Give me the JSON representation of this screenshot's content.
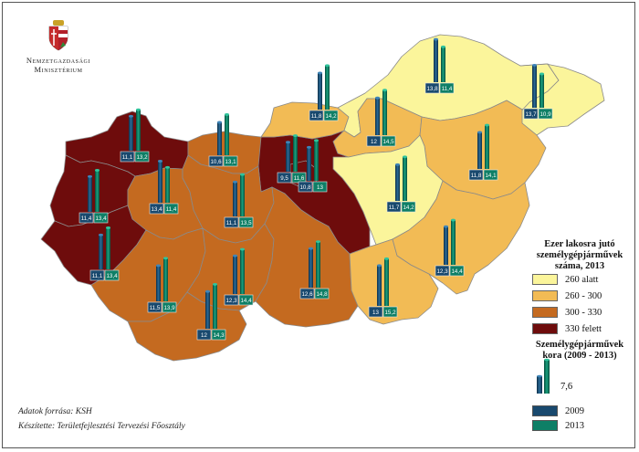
{
  "ministry": {
    "line1": "Nemzetgazdasági",
    "line2": "Minisztérium"
  },
  "legend": {
    "density_title_1": "Ezer lakosra jutó",
    "density_title_2": "személygépjárművek",
    "density_title_3": "száma, 2013",
    "classes": [
      {
        "label": "260 alatt",
        "color": "#fbf59b"
      },
      {
        "label": "260 - 300",
        "color": "#f2bb55"
      },
      {
        "label": "300 - 330",
        "color": "#c46a20"
      },
      {
        "label": "330 felett",
        "color": "#6e0c0c"
      }
    ],
    "age_title_1": "Személygépjárművek",
    "age_title_2": "kora (2009 - 2013)",
    "sample_value": "7,6",
    "year_2009": "2009",
    "year_2013": "2013",
    "color_2009": "#19496e",
    "color_2013": "#0e7f66"
  },
  "source": {
    "data": "Adatok forrása: KSH",
    "author": "Készítette: Területfejlesztési Tervezési Főosztály"
  },
  "map_data": {
    "counties": [
      {
        "id": "gyor-moson-sopron",
        "class": 3,
        "v2009": "11,1",
        "n2009": 11.1,
        "v2013": "13,2",
        "n2013": 13.2
      },
      {
        "id": "komarom-esztergom",
        "class": 2,
        "v2009": "10,6",
        "n2009": 10.6,
        "v2013": "13,1",
        "n2013": 13.1
      },
      {
        "id": "pest",
        "class": 3,
        "v2009": "9,5",
        "n2009": 9.5,
        "v2013": "11,6",
        "n2013": 11.6
      },
      {
        "id": "budapest",
        "class": 3,
        "v2009": "10,8",
        "n2009": 10.8,
        "v2013": "13",
        "n2013": 13.0
      },
      {
        "id": "nograd",
        "class": 1,
        "v2009": "11,8",
        "n2009": 11.8,
        "v2013": "14,2",
        "n2013": 14.2
      },
      {
        "id": "borsod-abauj-zemplen",
        "class": 0,
        "v2009": "13,8",
        "n2009": 13.8,
        "v2013": "11,4",
        "n2013": 11.4
      },
      {
        "id": "szabolcs-szatmar-bereg",
        "class": 0,
        "v2009": "13,7",
        "n2009": 13.7,
        "v2013": "10,9",
        "n2013": 10.9
      },
      {
        "id": "heves",
        "class": 1,
        "v2009": "12",
        "n2009": 12.0,
        "v2013": "14,5",
        "n2013": 14.5
      },
      {
        "id": "hajdu-bihar",
        "class": 1,
        "v2009": "11,8",
        "n2009": 11.8,
        "v2013": "14,1",
        "n2013": 14.1
      },
      {
        "id": "jasz-nagykun-szolnok",
        "class": 0,
        "v2009": "11,7",
        "n2009": 11.7,
        "v2013": "14,2",
        "n2013": 14.2
      },
      {
        "id": "vas",
        "class": 3,
        "v2009": "11,4",
        "n2009": 11.4,
        "v2013": "13,4",
        "n2013": 13.4
      },
      {
        "id": "veszprem",
        "class": 2,
        "v2009": "13,4",
        "n2009": 13.4,
        "v2013": "11,4",
        "n2013": 11.4
      },
      {
        "id": "fejer",
        "class": 2,
        "v2009": "11,1",
        "n2009": 11.1,
        "v2013": "13,5",
        "n2013": 13.5
      },
      {
        "id": "zala",
        "class": 3,
        "v2009": "11,1",
        "n2009": 11.1,
        "v2013": "13,4",
        "n2013": 13.4
      },
      {
        "id": "somogy",
        "class": 2,
        "v2009": "11,5",
        "n2009": 11.5,
        "v2013": "13,9",
        "n2013": 13.9
      },
      {
        "id": "tolna",
        "class": 2,
        "v2009": "12,3",
        "n2009": 12.3,
        "v2013": "14,4",
        "n2013": 14.4
      },
      {
        "id": "bacs-kiskun",
        "class": 2,
        "v2009": "12,6",
        "n2009": 12.6,
        "v2013": "14,8",
        "n2013": 14.8
      },
      {
        "id": "baranya",
        "class": 2,
        "v2009": "12",
        "n2009": 12.0,
        "v2013": "14,3",
        "n2013": 14.3
      },
      {
        "id": "csongrad",
        "class": 1,
        "v2009": "13",
        "n2009": 13.0,
        "v2013": "15,2",
        "n2013": 15.2
      },
      {
        "id": "bekes",
        "class": 1,
        "v2009": "12,3",
        "n2009": 12.3,
        "v2013": "14,4",
        "n2013": 14.4
      }
    ]
  }
}
